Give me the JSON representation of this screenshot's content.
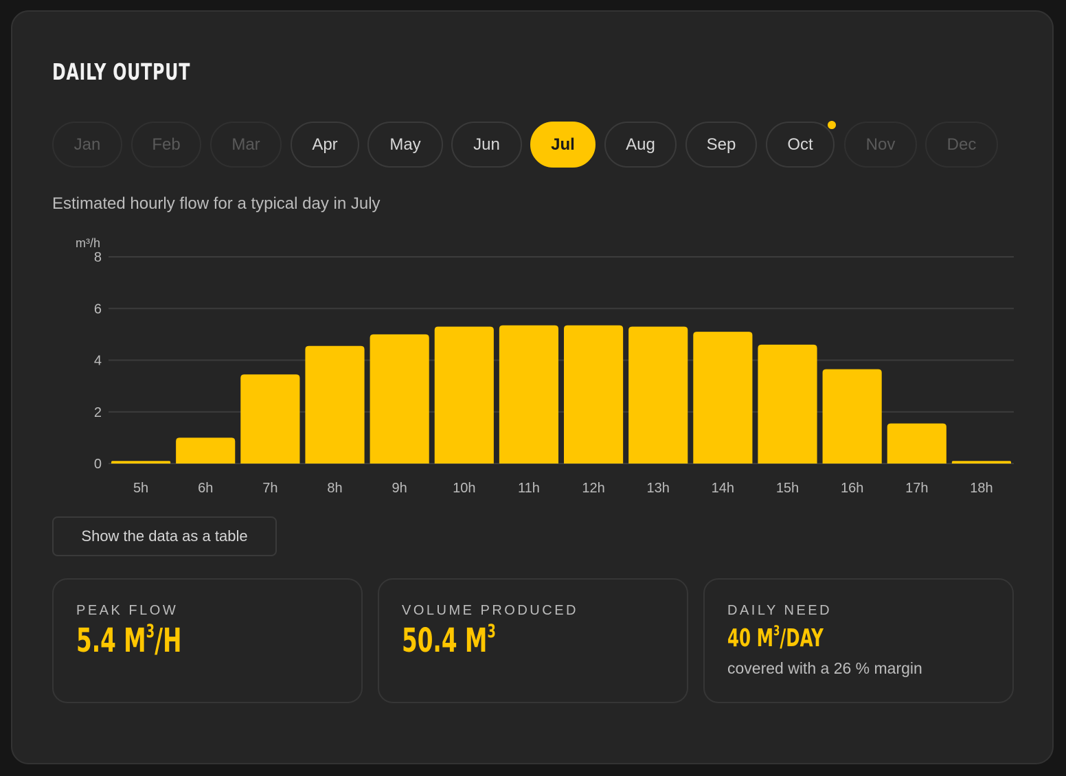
{
  "card": {
    "title": "DAILY OUTPUT"
  },
  "months": {
    "items": [
      {
        "label": "Jan",
        "state": "dim"
      },
      {
        "label": "Feb",
        "state": "dim"
      },
      {
        "label": "Mar",
        "state": "dim"
      },
      {
        "label": "Apr",
        "state": "normal"
      },
      {
        "label": "May",
        "state": "normal"
      },
      {
        "label": "Jun",
        "state": "normal"
      },
      {
        "label": "Jul",
        "state": "active"
      },
      {
        "label": "Aug",
        "state": "normal"
      },
      {
        "label": "Sep",
        "state": "normal"
      },
      {
        "label": "Oct",
        "state": "normal",
        "marker": true
      },
      {
        "label": "Nov",
        "state": "dim"
      },
      {
        "label": "Dec",
        "state": "dim"
      }
    ]
  },
  "chart_subtitle": "Estimated hourly flow for a typical day in July",
  "chart_data": {
    "type": "bar",
    "title": "",
    "unit": "m³/h",
    "categories": [
      "5h",
      "6h",
      "7h",
      "8h",
      "9h",
      "10h",
      "11h",
      "12h",
      "13h",
      "14h",
      "15h",
      "16h",
      "17h",
      "18h"
    ],
    "values": [
      0.1,
      1.0,
      3.45,
      4.55,
      5.0,
      5.3,
      5.35,
      5.35,
      5.3,
      5.1,
      4.6,
      3.65,
      1.55,
      0.1
    ],
    "ylim": [
      0,
      8
    ],
    "yticks": [
      "0",
      "2",
      "4",
      "6",
      "8"
    ],
    "grid": true,
    "bar_color": "#ffc600"
  },
  "table_button": "Show the data as a table",
  "stats": {
    "peak": {
      "label": "PEAK FLOW",
      "value": "5.4 M",
      "sup": "3",
      "suffix": "/H"
    },
    "volume": {
      "label": "VOLUME PRODUCED",
      "value": "50.4 M",
      "sup": "3",
      "suffix": ""
    },
    "need": {
      "label": "DAILY NEED",
      "value": "40 M",
      "sup": "3",
      "suffix": "/DAY",
      "note": "covered with a 26 % margin"
    }
  },
  "colors": {
    "accent": "#ffc600",
    "background": "#252525"
  }
}
